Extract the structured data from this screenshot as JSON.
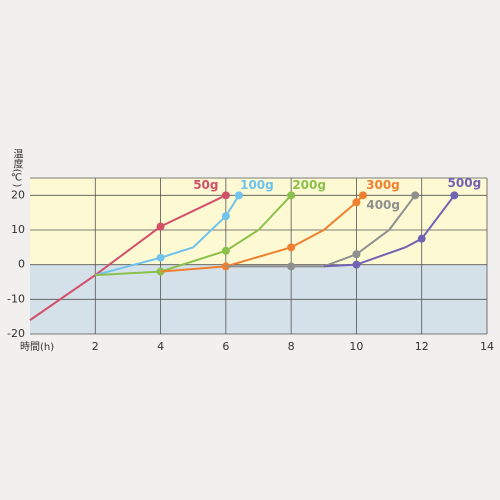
{
  "chart_data": {
    "type": "line",
    "y_label": "温度(℃)",
    "x_label": "時間(h)",
    "xlim": [
      0,
      14
    ],
    "xticks": [
      2,
      4,
      6,
      8,
      10,
      12,
      14
    ],
    "ylim": [
      -20,
      25
    ],
    "yticks": [
      -20,
      -10,
      0,
      10,
      20
    ],
    "grid": true,
    "series": [
      {
        "name": "50g",
        "color": "#d2506a",
        "x": [
          0,
          2,
          4,
          6
        ],
        "values": [
          -16,
          -3,
          11,
          20
        ],
        "markers": [
          false,
          false,
          true,
          true
        ]
      },
      {
        "name": "100g",
        "color": "#6fc3ec",
        "x": [
          2,
          4,
          5,
          6,
          6.4
        ],
        "values": [
          -3,
          2,
          5,
          14,
          20
        ],
        "markers": [
          false,
          true,
          false,
          true,
          true
        ]
      },
      {
        "name": "200g",
        "color": "#8cc04c",
        "x": [
          2,
          4,
          6,
          7,
          8
        ],
        "values": [
          -3,
          -2,
          4,
          10,
          20
        ],
        "markers": [
          false,
          true,
          true,
          false,
          true
        ]
      },
      {
        "name": "300g",
        "color": "#f08030",
        "x": [
          4,
          6,
          8,
          9,
          10,
          10.2
        ],
        "values": [
          -2,
          -0.5,
          5,
          10,
          18,
          20
        ],
        "markers": [
          false,
          true,
          true,
          false,
          true,
          true
        ]
      },
      {
        "name": "400g",
        "color": "#8f8f8f",
        "x": [
          6,
          8,
          9,
          10,
          11,
          11.8
        ],
        "values": [
          -0.5,
          -0.5,
          -0.5,
          3,
          10,
          20
        ],
        "markers": [
          false,
          true,
          false,
          true,
          false,
          true
        ]
      },
      {
        "name": "500g",
        "color": "#7262b2",
        "x": [
          9,
          10,
          11.5,
          12,
          13
        ],
        "values": [
          -0.5,
          0,
          5,
          7.5,
          20
        ],
        "markers": [
          false,
          true,
          false,
          true,
          true
        ]
      }
    ]
  }
}
